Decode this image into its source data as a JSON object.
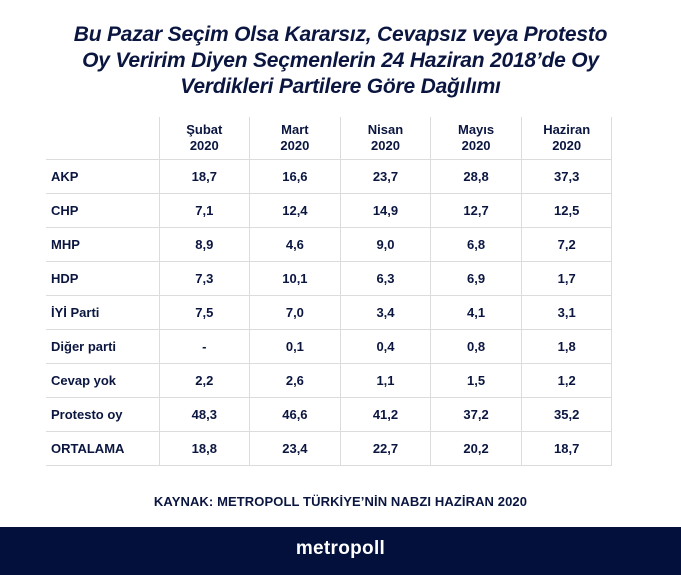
{
  "title": {
    "lines": [
      "Bu Pazar Seçim Olsa Kararsız, Cevapsız veya Protesto",
      "Oy Veririm Diyen Seçmenlerin 24 Haziran 2018’de Oy",
      "Verdikleri Partilere Göre Dağılımı"
    ]
  },
  "table": {
    "columns": [
      {
        "line1": "Şubat",
        "line2": "2020"
      },
      {
        "line1": "Mart",
        "line2": "2020"
      },
      {
        "line1": "Nisan",
        "line2": "2020"
      },
      {
        "line1": "Mayıs",
        "line2": "2020"
      },
      {
        "line1": "Haziran",
        "line2": "2020"
      }
    ],
    "rows": [
      {
        "label": "AKP",
        "values": [
          "18,7",
          "16,6",
          "23,7",
          "28,8",
          "37,3"
        ]
      },
      {
        "label": "CHP",
        "values": [
          "7,1",
          "12,4",
          "14,9",
          "12,7",
          "12,5"
        ]
      },
      {
        "label": "MHP",
        "values": [
          "8,9",
          "4,6",
          "9,0",
          "6,8",
          "7,2"
        ]
      },
      {
        "label": "HDP",
        "values": [
          "7,3",
          "10,1",
          "6,3",
          "6,9",
          "1,7"
        ]
      },
      {
        "label": "İYİ Parti",
        "values": [
          "7,5",
          "7,0",
          "3,4",
          "4,1",
          "3,1"
        ]
      },
      {
        "label": "Diğer parti",
        "values": [
          "-",
          "0,1",
          "0,4",
          "0,8",
          "1,8"
        ]
      },
      {
        "label": "Cevap yok",
        "values": [
          "2,2",
          "2,6",
          "1,1",
          "1,5",
          "1,2"
        ]
      },
      {
        "label": "Protesto oy",
        "values": [
          "48,3",
          "46,6",
          "41,2",
          "37,2",
          "35,2"
        ]
      },
      {
        "label": "ORTALAMA",
        "values": [
          "18,8",
          "23,4",
          "22,7",
          "20,2",
          "18,7"
        ]
      }
    ]
  },
  "source": "KAYNAK: METROPOLL TÜRKİYE’NİN NABZI HAZİRAN 2020",
  "footer": {
    "logo": "metropoll"
  },
  "colors": {
    "text": "#0b1640",
    "footer_bg": "#02103b",
    "grid": "#dcdcdc",
    "logo": "#ffffff"
  },
  "chart_data": {
    "type": "table",
    "title": "Bu Pazar Seçim Olsa Kararsız, Cevapsız veya Protesto Oy Veririm Diyen Seçmenlerin 24 Haziran 2018’de Oy Verdikleri Partilere Göre Dağılımı",
    "categories": [
      "Şubat 2020",
      "Mart 2020",
      "Nisan 2020",
      "Mayıs 2020",
      "Haziran 2020"
    ],
    "series": [
      {
        "name": "AKP",
        "values": [
          18.7,
          16.6,
          23.7,
          28.8,
          37.3
        ]
      },
      {
        "name": "CHP",
        "values": [
          7.1,
          12.4,
          14.9,
          12.7,
          12.5
        ]
      },
      {
        "name": "MHP",
        "values": [
          8.9,
          4.6,
          9.0,
          6.8,
          7.2
        ]
      },
      {
        "name": "HDP",
        "values": [
          7.3,
          10.1,
          6.3,
          6.9,
          1.7
        ]
      },
      {
        "name": "İYİ Parti",
        "values": [
          7.5,
          7.0,
          3.4,
          4.1,
          3.1
        ]
      },
      {
        "name": "Diğer parti",
        "values": [
          null,
          0.1,
          0.4,
          0.8,
          1.8
        ]
      },
      {
        "name": "Cevap yok",
        "values": [
          2.2,
          2.6,
          1.1,
          1.5,
          1.2
        ]
      },
      {
        "name": "Protesto oy",
        "values": [
          48.3,
          46.6,
          41.2,
          37.2,
          35.2
        ]
      },
      {
        "name": "ORTALAMA",
        "values": [
          18.8,
          23.4,
          22.7,
          20.2,
          18.7
        ]
      }
    ],
    "source": "KAYNAK: METROPOLL TÜRKİYE’NİN NABZI HAZİRAN 2020"
  }
}
